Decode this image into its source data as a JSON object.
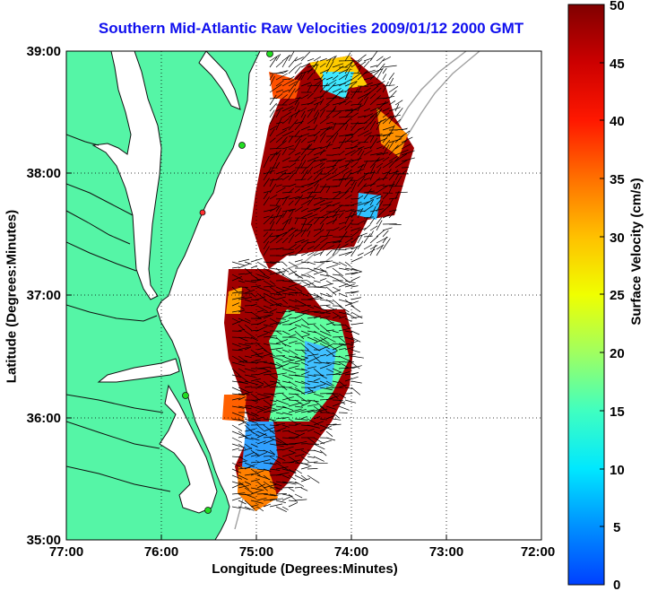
{
  "title": "Southern Mid-Atlantic Raw Velocities 2009/01/12 2000 GMT",
  "axes": {
    "xlabel": "Longitude (Degrees:Minutes)",
    "ylabel": "Latitude (Degrees:Minutes)",
    "x_ticks": [
      "77:00",
      "76:00",
      "75:00",
      "74:00",
      "73:00",
      "72:00"
    ],
    "y_ticks": [
      "39:00",
      "38:00",
      "37:00",
      "36:00",
      "35:00"
    ]
  },
  "colorbar": {
    "label": "Surface Velocity (cm/s)",
    "ticks": [
      "50",
      "45",
      "40",
      "35",
      "30",
      "25",
      "20",
      "15",
      "10",
      "5",
      "0"
    ],
    "range": [
      0,
      50
    ]
  },
  "colors": {
    "land": "#55f5a6",
    "title": "#1010ee",
    "coast": "#111111",
    "bathymetry": "#a0a0a0",
    "vector": "#000000",
    "station": "#22dd22"
  },
  "map_extent": {
    "lon": [
      -77,
      -72
    ],
    "lat": [
      35,
      39
    ]
  }
}
